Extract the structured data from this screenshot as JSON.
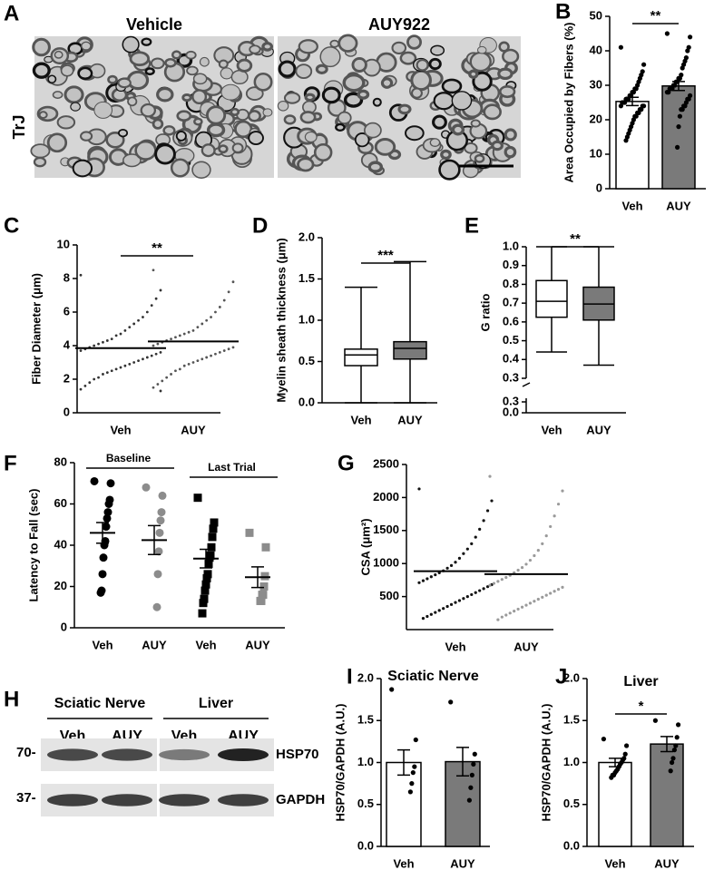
{
  "panel_labels": [
    "A",
    "B",
    "C",
    "D",
    "E",
    "F",
    "G",
    "H",
    "I",
    "J"
  ],
  "figure_a": {
    "columns": [
      "Vehicle",
      "AUY922"
    ],
    "row_label": "TrJ"
  },
  "figure_h": {
    "groups": [
      "Sciatic Nerve",
      "Liver"
    ],
    "lanes": [
      "Veh",
      "AUY",
      "Veh",
      "AUY"
    ],
    "markers": [
      "70-",
      "37-"
    ],
    "proteins": [
      "HSP70",
      "GAPDH"
    ]
  },
  "chart_data": [
    {
      "type": "bar",
      "y_label": "Area Occupied by Fibers (%)",
      "categories": [
        "Veh",
        "AUY"
      ],
      "colors": [
        "#ffffff",
        "#7a7a7a"
      ],
      "values": [
        25.3,
        29.8
      ],
      "errors": [
        1.2,
        1.3
      ],
      "points": [
        [
          41,
          36,
          34,
          33,
          32,
          31,
          30,
          29,
          29,
          28,
          28,
          27,
          27,
          26,
          26,
          26,
          25,
          25,
          25,
          24,
          24,
          24,
          23,
          23,
          22,
          22,
          21,
          21,
          20,
          19,
          18,
          17,
          16,
          15,
          14
        ],
        [
          45,
          44,
          41,
          40,
          38,
          37,
          36,
          35,
          33,
          32,
          32,
          31,
          31,
          30,
          30,
          29,
          29,
          29,
          28,
          28,
          27,
          26,
          26,
          25,
          24,
          24,
          23,
          23,
          21,
          18,
          12
        ]
      ],
      "ylim": [
        0,
        50
      ],
      "yticks": [
        0,
        10,
        20,
        30,
        40,
        50
      ],
      "significance": "**"
    },
    {
      "type": "strip",
      "y_label": "Fiber Diameter (μm)",
      "categories": [
        "Veh",
        "AUY"
      ],
      "colors": [
        "#333333",
        "#555555"
      ],
      "means": [
        3.85,
        4.25
      ],
      "points": [
        [
          8.2,
          7.3,
          6.8,
          6.4,
          6.0,
          5.7,
          5.5,
          5.3,
          5.1,
          4.9,
          4.7,
          4.6,
          4.4,
          4.3,
          4.2,
          4.1,
          4.0,
          3.9,
          3.8,
          3.7,
          3.6,
          3.5,
          3.4,
          3.3,
          3.2,
          3.1,
          3.0,
          2.9,
          2.8,
          2.7,
          2.6,
          2.5,
          2.4,
          2.3,
          2.1,
          2.0,
          1.8,
          1.6,
          1.4,
          1.3
        ],
        [
          8.5,
          7.8,
          7.2,
          6.7,
          6.3,
          6.0,
          5.7,
          5.5,
          5.3,
          5.1,
          4.9,
          4.8,
          4.7,
          4.6,
          4.5,
          4.4,
          4.3,
          4.2,
          4.1,
          4.0,
          3.9,
          3.8,
          3.7,
          3.6,
          3.5,
          3.4,
          3.3,
          3.2,
          3.1,
          3.0,
          2.9,
          2.8,
          2.6,
          2.5,
          2.3,
          2.1,
          1.9,
          1.7,
          1.5
        ]
      ],
      "ylim": [
        0,
        10
      ],
      "yticks": [
        0,
        2,
        4,
        6,
        8,
        10
      ],
      "significance": "**"
    },
    {
      "type": "box",
      "y_label": "Myelin sheath thickness (μm)",
      "categories": [
        "Veh",
        "AUY"
      ],
      "colors": [
        "#ffffff",
        "#7a7a7a"
      ],
      "boxes": [
        {
          "min": 0,
          "q1": 0.45,
          "median": 0.58,
          "q3": 0.65,
          "max": 1.4
        },
        {
          "min": 0,
          "q1": 0.53,
          "median": 0.66,
          "q3": 0.74,
          "max": 1.71
        }
      ],
      "ylim": [
        0,
        2
      ],
      "yticks": [
        {
          "value": 0,
          "label": "0.0"
        },
        {
          "value": 0.5,
          "label": "0.5"
        },
        {
          "value": 1,
          "label": "1.0"
        },
        {
          "value": 1.5,
          "label": "1.5"
        },
        {
          "value": 2,
          "label": "2.0"
        }
      ],
      "significance": "***"
    },
    {
      "type": "box",
      "y_label": "G ratio",
      "categories": [
        "Veh",
        "AUY"
      ],
      "colors": [
        "#ffffff",
        "#7a7a7a"
      ],
      "boxes": [
        {
          "min": 0.44,
          "q1": 0.625,
          "median": 0.71,
          "q3": 0.82,
          "max": 1
        },
        {
          "min": 0.37,
          "q1": 0.61,
          "median": 0.695,
          "q3": 0.785,
          "max": 1
        }
      ],
      "ylim": [
        0.3,
        1
      ],
      "yticks": [
        0.3,
        0.4,
        0.5,
        0.6,
        0.7,
        0.8,
        0.9,
        {
          "value": 1,
          "label": "1.0"
        }
      ],
      "break_ticks": [
        0.3,
        {
          "value": 0,
          "label": "0.0"
        }
      ],
      "significance": "**"
    },
    {
      "type": "strip",
      "y_label": "Latency to Fall (sec)",
      "categories": [
        "Veh",
        "AUY",
        "Veh",
        "AUY"
      ],
      "groups": [
        "Baseline",
        "Last Trial"
      ],
      "colors": [
        "#000000",
        "#8c8c8c",
        "#000000",
        "#8c8c8c"
      ],
      "markers": [
        "circle",
        "circle",
        "square",
        "square"
      ],
      "means": [
        46,
        42.5,
        33.5,
        24.5
      ],
      "errors": [
        5,
        7,
        4.5,
        5
      ],
      "points": [
        [
          71,
          70,
          62,
          60,
          56,
          53,
          49,
          42,
          40,
          34,
          26,
          18,
          17
        ],
        [
          68,
          64,
          56,
          52,
          46,
          37,
          26,
          10
        ],
        [
          63,
          51,
          48,
          44,
          39,
          35,
          34,
          31,
          26,
          24,
          21,
          18,
          14,
          12,
          7
        ],
        [
          46,
          39,
          25,
          20,
          16,
          16,
          13,
          13
        ]
      ],
      "ylim": [
        0,
        80
      ],
      "yticks": [
        0,
        20,
        40,
        60,
        80
      ]
    },
    {
      "type": "strip",
      "y_label": "CSA (μm²)",
      "categories": [
        "Veh",
        "AUY"
      ],
      "colors": [
        "#111111",
        "#9a9a9a"
      ],
      "means": [
        885,
        840
      ],
      "points": [
        [
          2130,
          1950,
          1800,
          1650,
          1520,
          1400,
          1300,
          1220,
          1150,
          1080,
          1020,
          970,
          930,
          890,
          860,
          830,
          800,
          770,
          740,
          710,
          680,
          650,
          620,
          590,
          560,
          530,
          500,
          470,
          440,
          410,
          380,
          350,
          320,
          290,
          260,
          230,
          200,
          170
        ],
        [
          2320,
          2100,
          1900,
          1720,
          1560,
          1420,
          1300,
          1200,
          1120,
          1050,
          990,
          940,
          900,
          860,
          820,
          790,
          760,
          730,
          700,
          670,
          640,
          610,
          580,
          550,
          520,
          490,
          460,
          430,
          400,
          370,
          340,
          310,
          280,
          250,
          220,
          190,
          150
        ]
      ],
      "ylim": [
        0,
        2500
      ],
      "yticks": [
        500,
        1000,
        1500,
        2000,
        2500
      ]
    },
    {
      "type": "bar",
      "title": "Sciatic Nerve",
      "y_label": "HSP70/GAPDH (A.U.)",
      "categories": [
        "Veh",
        "AUY"
      ],
      "colors": [
        "#ffffff",
        "#7a7a7a"
      ],
      "values": [
        1.0,
        1.01
      ],
      "errors": [
        0.15,
        0.17
      ],
      "points": [
        [
          1.87,
          1.27,
          0.95,
          0.88,
          0.75,
          0.65
        ],
        [
          1.72,
          1.1,
          0.98,
          0.85,
          0.7,
          0.55
        ]
      ],
      "ylim": [
        0,
        2
      ],
      "yticks": [
        {
          "value": 0,
          "label": "0.0"
        },
        {
          "value": 0.5,
          "label": "0.5"
        },
        {
          "value": 1,
          "label": "1.0"
        },
        {
          "value": 1.5,
          "label": "1.5"
        },
        {
          "value": 2,
          "label": "2.0"
        }
      ]
    },
    {
      "type": "bar",
      "title": "Liver",
      "y_label": "HSP70/GAPDH (A.U.)",
      "categories": [
        "Veh",
        "AUY"
      ],
      "colors": [
        "#ffffff",
        "#7a7a7a"
      ],
      "values": [
        1.0,
        1.22
      ],
      "errors": [
        0.05,
        0.09
      ],
      "points": [
        [
          1.28,
          1.2,
          1.1,
          1.05,
          1.03,
          1.0,
          0.98,
          0.95,
          0.92,
          0.9,
          0.88,
          0.85,
          0.85,
          0.82
        ],
        [
          1.5,
          1.45,
          1.3,
          1.2,
          1.15,
          1.05,
          1.0,
          0.9
        ]
      ],
      "ylim": [
        0,
        2
      ],
      "yticks": [
        {
          "value": 0,
          "label": "0.0"
        },
        {
          "value": 0.5,
          "label": "0.5"
        },
        {
          "value": 1,
          "label": "1.0"
        },
        {
          "value": 1.5,
          "label": "1.5"
        },
        {
          "value": 2,
          "label": "2.0"
        }
      ],
      "significance": "*"
    }
  ]
}
